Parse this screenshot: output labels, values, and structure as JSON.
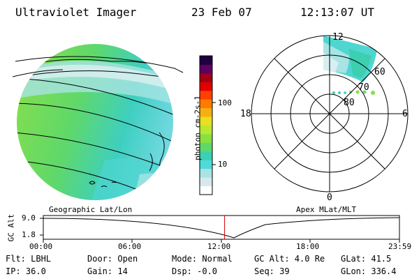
{
  "header": {
    "title": "Ultraviolet Imager",
    "date": "23 Feb 07",
    "time": "12:13:07 UT"
  },
  "colorbar": {
    "label": "photon cm-2s-1",
    "ticks": [
      "100",
      "10"
    ],
    "colors": [
      "#ffffff",
      "#d8e8ee",
      "#a8e4e4",
      "#4fdada",
      "#3cd0b4",
      "#5fd86a",
      "#8ae040",
      "#b8e830",
      "#e8e020",
      "#f4b010",
      "#ff7b00",
      "#ff4000",
      "#e00000",
      "#a00018",
      "#600060",
      "#200040"
    ]
  },
  "globe": {
    "caption": "Geographic Lat/Lon"
  },
  "polar": {
    "caption": "Apex MLat/MLT",
    "mlt_labels": {
      "top": "12",
      "left": "18",
      "right": "6",
      "bottom": "0"
    },
    "lat_labels": [
      "60",
      "70",
      "80"
    ]
  },
  "timeline": {
    "axis_label": "GC Alt",
    "y_ticks": [
      "9.0",
      "1.8"
    ],
    "x_ticks": [
      "00:00",
      "06:00",
      "12:00",
      "18:00",
      "23:59"
    ],
    "current_time_fraction": 0.509
  },
  "footer": {
    "filter": "Flt: LBHL",
    "door": "Door: Open",
    "mode": "Mode: Normal",
    "gc_alt": "GC Alt: 4.0 Re",
    "glat": "GLat:  41.5",
    "ip": "IP: 36.0",
    "gain": "Gain: 14",
    "dsp": "Dsp:   -0.0",
    "seq": "Seq: 39",
    "glon": "GLon: 336.4"
  }
}
